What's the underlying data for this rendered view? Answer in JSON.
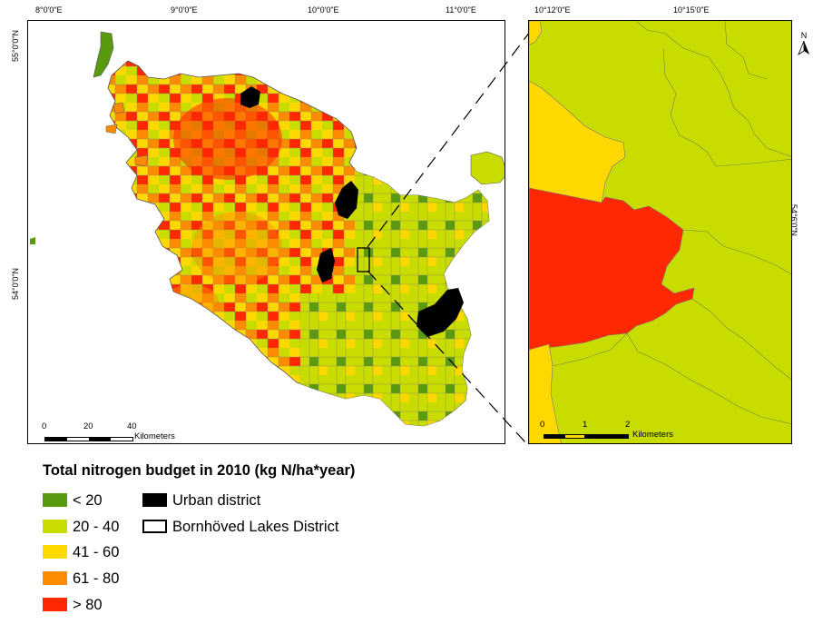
{
  "main_map": {
    "top_coords": [
      "8°0'0\"E",
      "9°0'0\"E",
      "10°0'0\"E",
      "11°0'0\"E"
    ],
    "left_coords": [
      "55°0'0\"N",
      "54°0'0\"N"
    ],
    "scalebar": {
      "ticks": [
        "0",
        "20",
        "40"
      ],
      "unit": "Kilometers"
    }
  },
  "inset_map": {
    "top_coords": [
      "10°12'0\"E",
      "10°15'0\"E"
    ],
    "right_coords": [
      "54°6'0\"N"
    ],
    "north_label": "N",
    "scalebar": {
      "ticks": [
        "0",
        "1",
        "2"
      ],
      "unit": "Kilometers"
    }
  },
  "legend": {
    "title": "Total nitrogen budget in 2010 (kg N/ha*year)",
    "classes": [
      {
        "label": "< 20",
        "color": "#5a9a10"
      },
      {
        "label": "20 - 40",
        "color": "#c8dc00"
      },
      {
        "label": "41 - 60",
        "color": "#ffd800"
      },
      {
        "label": "61 - 80",
        "color": "#ff8c00"
      },
      {
        "label": "> 80",
        "color": "#ff2800"
      }
    ],
    "extra": [
      {
        "label": "Urban district",
        "color": "#000000",
        "style": "fill"
      },
      {
        "label": "Bornhöved Lakes District",
        "color": "#000000",
        "style": "outline"
      }
    ]
  }
}
